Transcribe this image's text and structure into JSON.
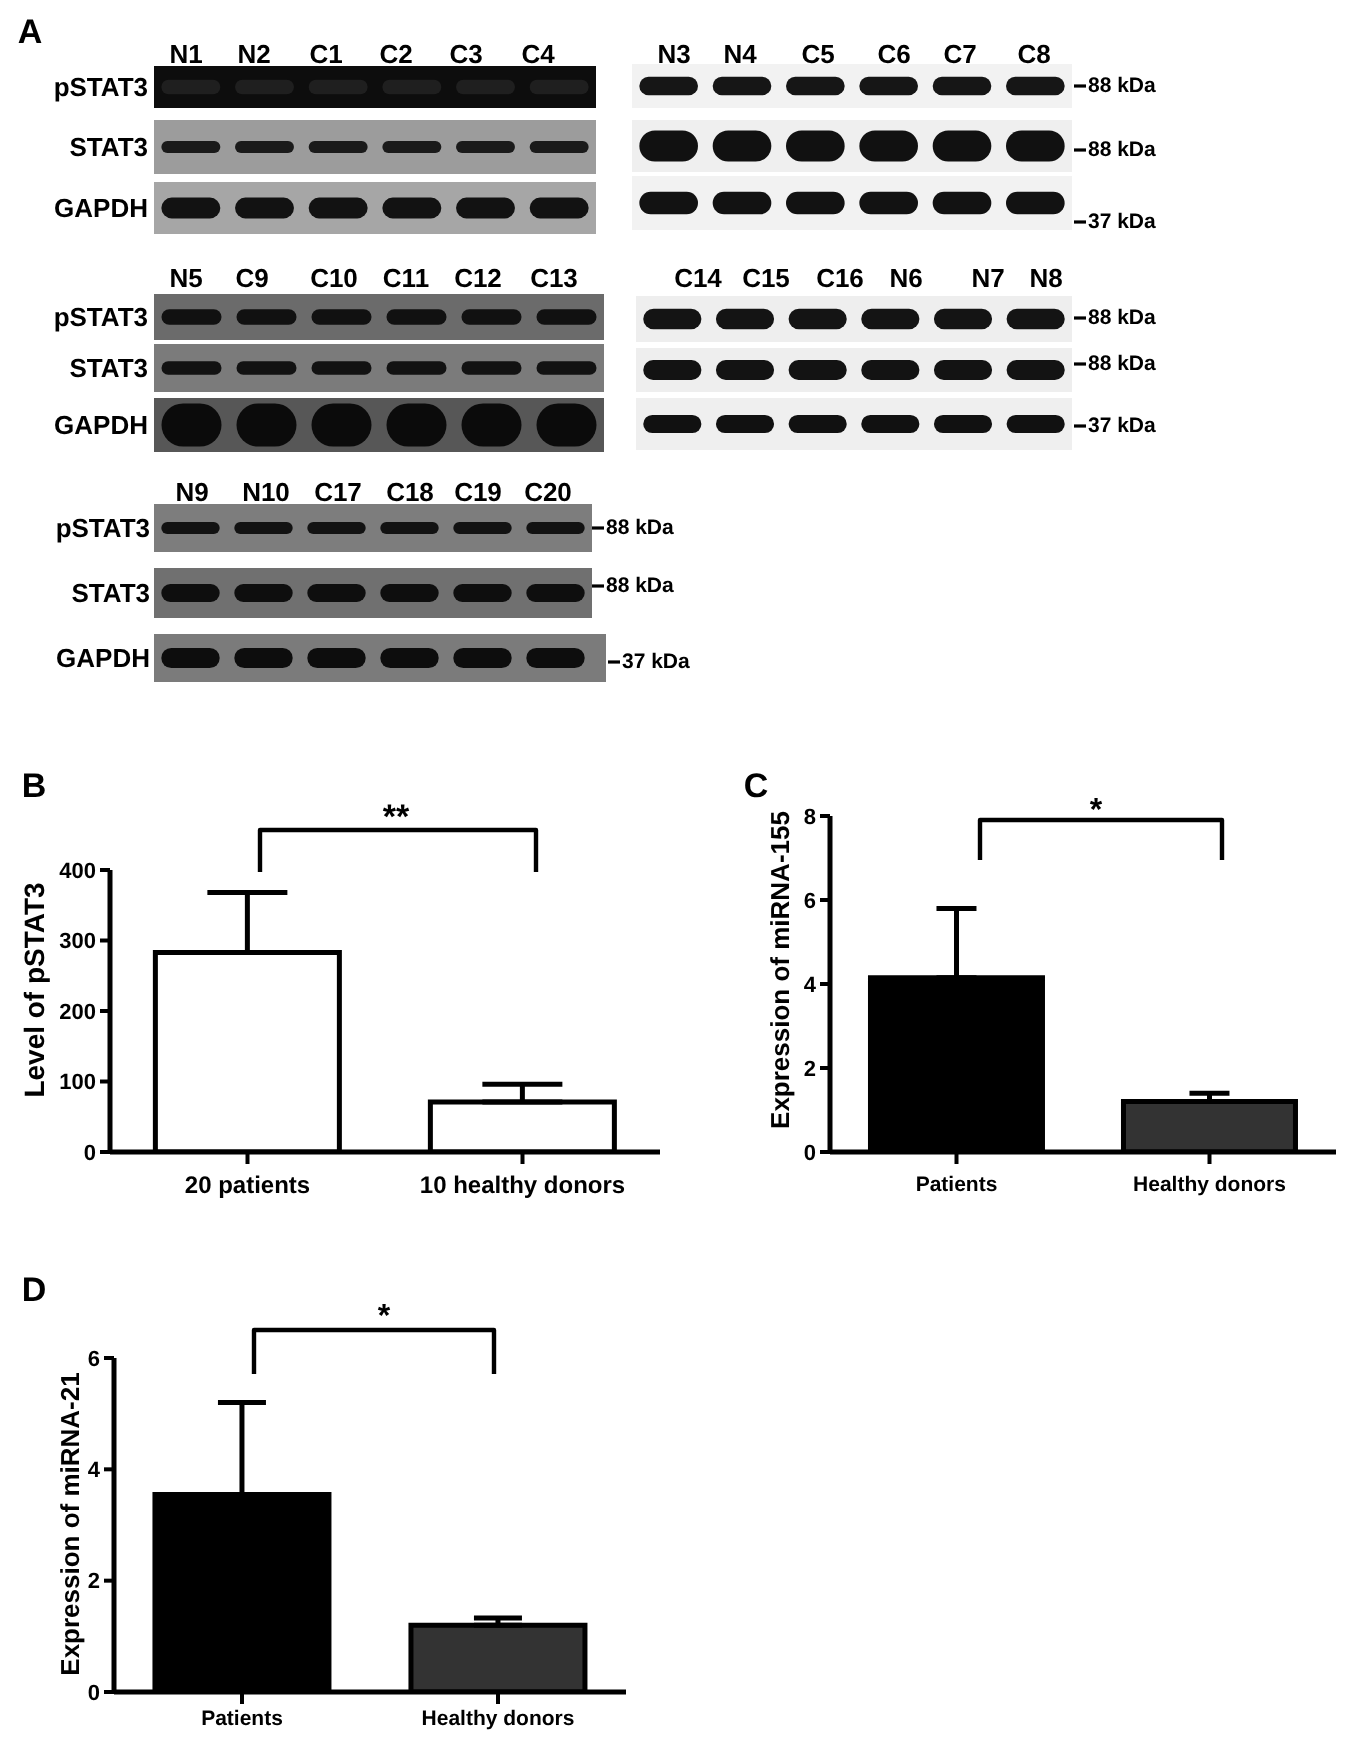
{
  "chart_data": [
    {
      "type": "other",
      "title": "A",
      "categories": [
        "N1",
        "N2",
        "C1",
        "C2",
        "C3",
        "C4"
      ],
      "y_categories": [
        "pSTAT3",
        "STAT3",
        "GAPDH"
      ]
    },
    {
      "type": "other",
      "categories": [
        "N3",
        "N4",
        "C5",
        "C6",
        "C7",
        "C8"
      ],
      "y2_categories": [
        "88 kDa",
        "88 kDa",
        "37 kDa"
      ]
    },
    {
      "type": "other",
      "categories": [
        "N5",
        "C9",
        "C10",
        "C11",
        "C12",
        "C13"
      ],
      "y_categories": [
        "pSTAT3",
        "STAT3",
        "GAPDH"
      ]
    },
    {
      "type": "other",
      "categories": [
        "C14",
        "C15",
        "C16",
        "N6",
        "N7",
        "N8"
      ],
      "y2_categories": [
        "88 kDa",
        "88 kDa",
        "37 kDa"
      ]
    },
    {
      "type": "other",
      "categories": [
        "N9",
        "N10",
        "C17",
        "C18",
        "C19",
        "C20"
      ],
      "y_categories": [
        "pSTAT3",
        "STAT3",
        "GAPDH"
      ],
      "y2_categories": [
        "88 kDa",
        "88 kDa",
        "37 kDa"
      ]
    },
    {
      "type": "bar",
      "title": "B",
      "ylabel": "Level of pSTAT3",
      "categories": [
        "20 patients",
        "10 healthy donors"
      ],
      "values": [
        283,
        71
      ],
      "errors": [
        [
          283,
          368
        ],
        [
          71,
          96
        ]
      ],
      "colors": [
        "#ffffff",
        "#ffffff"
      ],
      "ylim": [
        0,
        400
      ],
      "yticks": [
        0,
        100,
        200,
        300,
        400
      ],
      "annotations": [
        "**"
      ]
    },
    {
      "type": "bar",
      "title": "C",
      "ylabel": "Expression of miRNA-155",
      "categories": [
        "Patients",
        "Healthy donors"
      ],
      "values": [
        4.15,
        1.2
      ],
      "errors": [
        [
          4.15,
          5.8
        ],
        [
          1.2,
          1.4
        ]
      ],
      "colors": [
        "#000000",
        "#333333"
      ],
      "ylim": [
        0,
        8
      ],
      "yticks": [
        0,
        2,
        4,
        6,
        8
      ],
      "annotations": [
        "*"
      ]
    },
    {
      "type": "bar",
      "title": "D",
      "ylabel": "Expression of miRNA-21",
      "categories": [
        "Patients",
        "Healthy donors"
      ],
      "values": [
        3.55,
        1.2
      ],
      "errors": [
        [
          3.55,
          5.2
        ],
        [
          1.2,
          1.33
        ]
      ],
      "colors": [
        "#000000",
        "#333333"
      ],
      "ylim": [
        0,
        6
      ],
      "yticks": [
        0,
        2,
        4,
        6
      ],
      "annotations": [
        "*"
      ]
    }
  ]
}
